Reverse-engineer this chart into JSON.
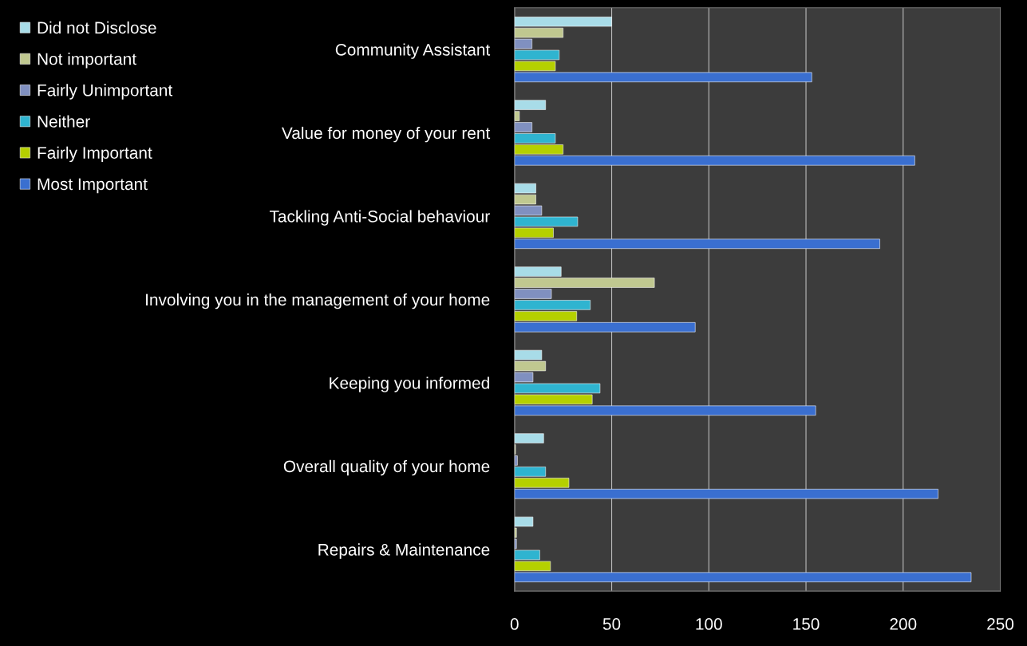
{
  "chart_data": {
    "type": "bar",
    "orientation": "horizontal",
    "categories": [
      "Community Assistant",
      "Value for money of your rent",
      "Tackling Anti-Social behaviour",
      "Involving you in the management of your home",
      "Keeping you informed",
      "Overall quality of your home",
      "Repairs & Maintenance"
    ],
    "series": [
      {
        "name": "Did not Disclose",
        "color": "#a8dce8",
        "values": [
          50,
          16,
          11,
          24,
          14,
          15,
          9.5
        ]
      },
      {
        "name": "Not important",
        "color": "#c0c890",
        "values": [
          25,
          2.5,
          11,
          72,
          16,
          0.5,
          1
        ]
      },
      {
        "name": "Fairly Unimportant",
        "color": "#8090c0",
        "values": [
          9,
          9,
          14,
          19,
          9.5,
          1.5,
          1
        ]
      },
      {
        "name": "Neither",
        "color": "#2fb4d0",
        "values": [
          23,
          21,
          32.5,
          39,
          44,
          16,
          13
        ]
      },
      {
        "name": "Fairly Important",
        "color": "#b5d000",
        "values": [
          21,
          25,
          20,
          32,
          40,
          28,
          18.5
        ]
      },
      {
        "name": "Most Important",
        "color": "#3a6fd0",
        "values": [
          153,
          206,
          188,
          93,
          155,
          218,
          235
        ]
      }
    ],
    "xlim": [
      0,
      250
    ],
    "xticks": [
      0,
      50,
      100,
      150,
      200,
      250
    ],
    "grid": "x",
    "legend": "top left"
  }
}
